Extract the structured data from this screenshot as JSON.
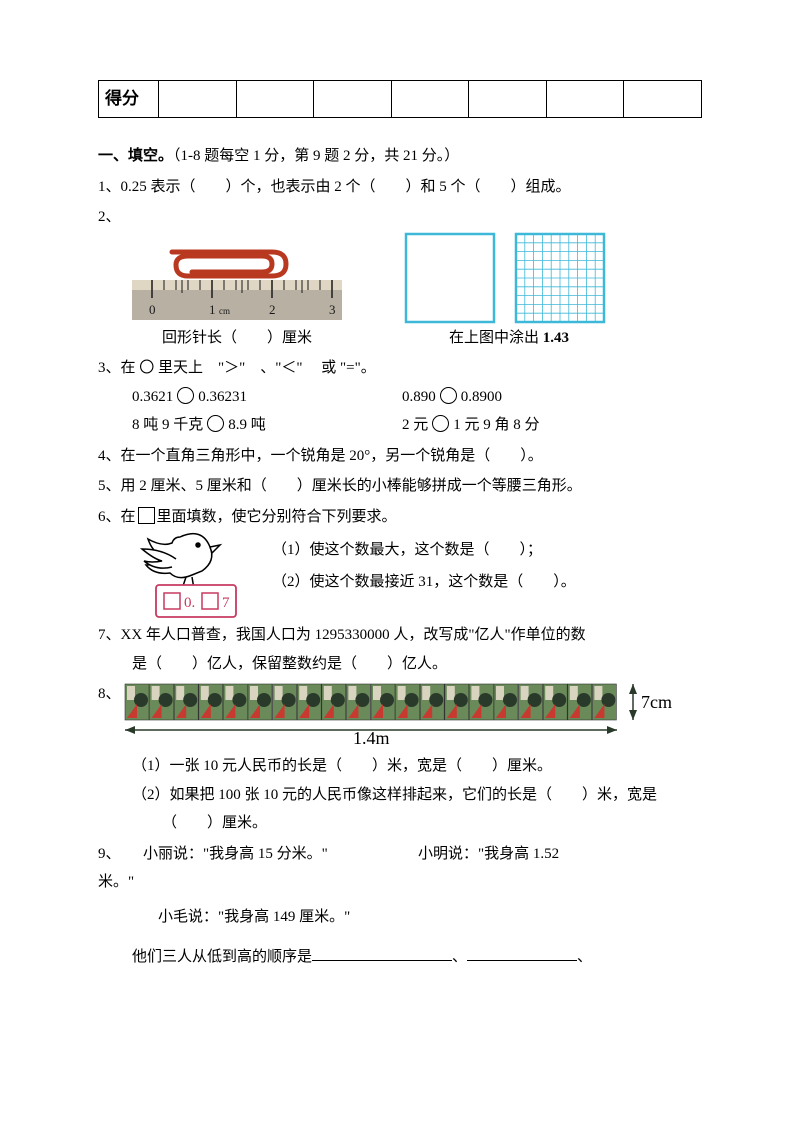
{
  "score_label": "得分",
  "section1": {
    "title": "一、填空。",
    "note": "（1-8 题每空 1 分，第 9 题 2 分，共 21 分。）"
  },
  "q1": {
    "num": "1、",
    "text": "0.25 表示（　　）个，也表示由 2 个（　　）和 5 个（　　）组成。"
  },
  "q2": {
    "num": "2、",
    "ruler_caption": "回形针长（　　）厘米",
    "ruler_ticks": [
      "0",
      "1",
      "2",
      "3"
    ],
    "ruler_unit": "cm",
    "grid_caption_pre": "在上图中涂出 ",
    "grid_caption_val": "1.43",
    "colors": {
      "ruler_body": "#b8b0a2",
      "ruler_top": "#dfd6c4",
      "clip": "#b83820",
      "grid_border": "#3eb8d8"
    }
  },
  "q3": {
    "num": "3、",
    "lead": "在 〇 里天上　\"＞\"　、\"＜\"　 或 \"=\"。",
    "row1a": "0.3621",
    "row1b": "0.36231",
    "row1c": "0.890",
    "row1d": "0.8900",
    "row2a": "8 吨 9 千克",
    "row2b": "8.9 吨",
    "row2c": "2 元",
    "row2d": "1 元 9 角 8 分"
  },
  "q4": {
    "num": "4、",
    "text": "在一个直角三角形中，一个锐角是 20°，另一个锐角是（　　）。"
  },
  "q5": {
    "num": "5、",
    "text": "用 2 厘米、5 厘米和（　　）厘米长的小棒能够拼成一个等腰三角形。"
  },
  "q6": {
    "num": "6、",
    "lead": "在",
    "lead2": "里面填数，使它分别符合下列要求。",
    "line1": "（1）使这个数最大，这个数是（　　）；",
    "line2": "（2）使这个数最接近 31，这个数是（　　）。",
    "digit_mid": "0.",
    "digit_right": "7",
    "bird_color": "#000000",
    "card_border": "#c83a60"
  },
  "q7": {
    "num": "7、",
    "text_a": "XX 年人口普查，我国人口为 1295330000 人，改写成\"亿人\"作单位的数",
    "text_b": "是（　　）亿人，保留整数约是（　　）亿人。"
  },
  "q8": {
    "num": "8、",
    "width_label": "1.4m",
    "height_label": "7cm",
    "sub1": "（1）一张 10 元人民币的长是（　　）米，宽是（　　）厘米。",
    "sub2a": "（2）如果把 100 张 10 元的人民币像这样排起来，它们的长是（　　）米，宽是",
    "sub2b": "（　　）厘米。",
    "note_colors": {
      "bg": "#6a8a5a",
      "accent": "#c83a30",
      "dark": "#2a3a2a"
    }
  },
  "q9": {
    "num": "9、",
    "a": "小丽说：\"我身高 15 分米。\"",
    "b": "小明说：\"我身高 1.52",
    "b2": "米。\"",
    "c": "小毛说：\"我身高 149 厘米。\"",
    "final": "他们三人从低到高的顺序是",
    "sep": "、"
  }
}
